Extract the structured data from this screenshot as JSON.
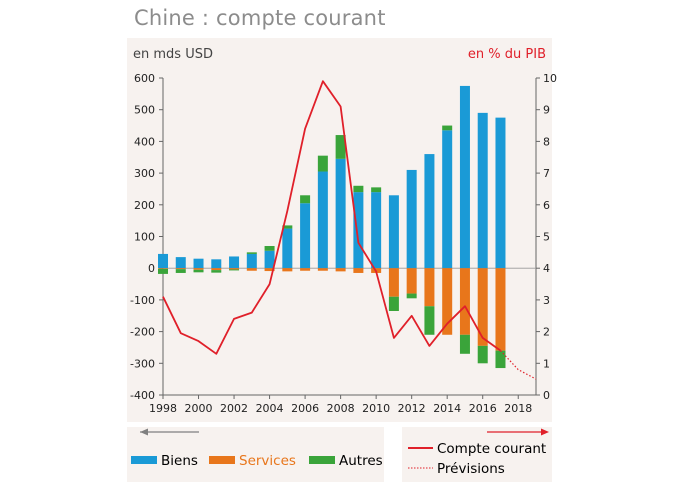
{
  "title": "Chine : compte courant",
  "colors": {
    "biens": "#1a9ad6",
    "services": "#e8761b",
    "autres": "#3aa43a",
    "compte_courant": "#e0202a",
    "axis": "#666666",
    "left_axis_label": "#444444",
    "right_axis_label": "#e0202a"
  },
  "legend": {
    "biens": "Biens",
    "services": "Services",
    "autres": "Autres",
    "compte_courant": "Compte courant",
    "previsions": "Prévisions"
  },
  "chart_data": {
    "type": "bar",
    "ylabel_left": "en mds USD",
    "ylabel_right": "en % du PIB",
    "ylim_left": [
      -400,
      600
    ],
    "ylim_right": [
      0,
      10
    ],
    "yticks_left": [
      600,
      500,
      400,
      300,
      200,
      100,
      0,
      -100,
      -200,
      -300,
      -400
    ],
    "yticks_right": [
      10,
      9,
      8,
      7,
      6,
      5,
      4,
      3,
      2,
      1,
      0
    ],
    "xticks": [
      1998,
      2000,
      2002,
      2004,
      2006,
      2008,
      2010,
      2012,
      2014,
      2016,
      2018
    ],
    "xlim": [
      1998,
      2019
    ],
    "years": [
      1998,
      1999,
      2000,
      2001,
      2002,
      2003,
      2004,
      2005,
      2006,
      2007,
      2008,
      2009,
      2010,
      2011,
      2012,
      2013,
      2014,
      2015,
      2016,
      2017
    ],
    "series": [
      {
        "name": "Biens",
        "values": [
          45,
          35,
          30,
          28,
          37,
          45,
          55,
          125,
          205,
          305,
          345,
          240,
          240,
          230,
          310,
          360,
          435,
          575,
          490,
          475
        ]
      },
      {
        "name": "Services",
        "values": [
          -2,
          -3,
          -5,
          -6,
          -4,
          -8,
          -9,
          -10,
          -8,
          -8,
          -10,
          -15,
          -15,
          -90,
          -80,
          -120,
          -210,
          -210,
          -245,
          -260
        ]
      },
      {
        "name": "Autres",
        "values": [
          -16,
          -12,
          -8,
          -8,
          -3,
          5,
          15,
          10,
          25,
          50,
          75,
          20,
          15,
          -45,
          -15,
          -90,
          15,
          -60,
          -55,
          -55
        ]
      }
    ],
    "line": {
      "name": "Compte courant",
      "x": [
        1998,
        1999,
        2000,
        2001,
        2002,
        2003,
        2004,
        2005,
        2006,
        2007,
        2008,
        2009,
        2010,
        2011,
        2012,
        2013,
        2014,
        2015,
        2016,
        2017
      ],
      "values": [
        3.1,
        1.95,
        1.7,
        1.3,
        2.4,
        2.6,
        3.5,
        5.8,
        8.4,
        9.9,
        9.1,
        4.8,
        3.9,
        1.8,
        2.5,
        1.55,
        2.25,
        2.8,
        1.8,
        1.4
      ]
    },
    "forecast": {
      "name": "Prévisions",
      "x": [
        2017,
        2018,
        2019
      ],
      "values": [
        1.4,
        0.8,
        0.5
      ]
    }
  }
}
